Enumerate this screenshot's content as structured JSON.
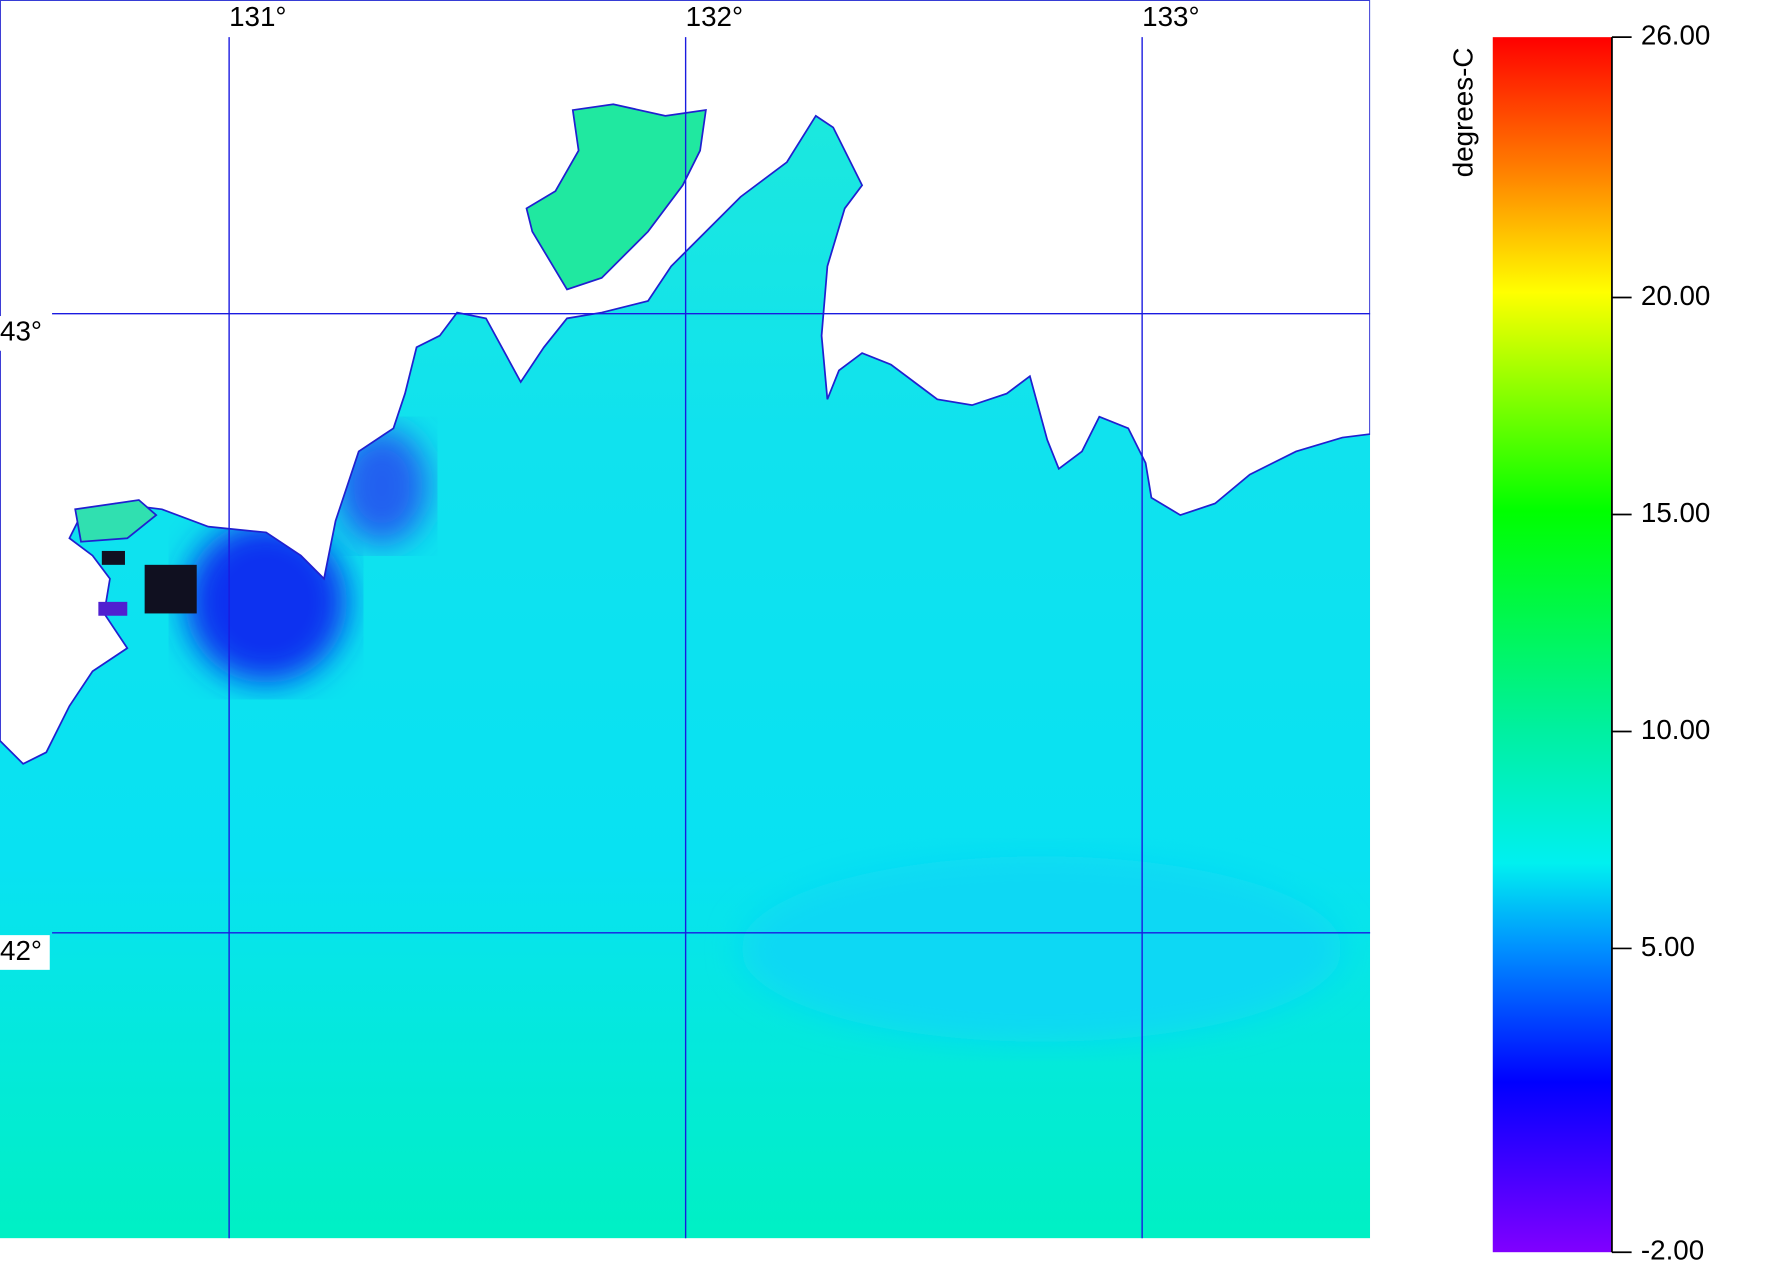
{
  "map": {
    "lon_ticks": [
      {
        "value": 131,
        "label": "131°"
      },
      {
        "value": 132,
        "label": "132°"
      },
      {
        "value": 133,
        "label": "133°"
      }
    ],
    "lat_ticks": [
      {
        "value": 43,
        "label": "43°"
      },
      {
        "value": 42,
        "label": "42°"
      }
    ]
  },
  "colorbar": {
    "title": "degrees-C",
    "lim": [
      -2,
      26
    ],
    "ticks": [
      {
        "value": -2,
        "label": "-2.00"
      },
      {
        "value": 5,
        "label": "5.00"
      },
      {
        "value": 10,
        "label": "10.00"
      },
      {
        "value": 15,
        "label": "15.00"
      },
      {
        "value": 20,
        "label": "20.00"
      },
      {
        "value": 26,
        "label": "26.00"
      }
    ]
  }
}
